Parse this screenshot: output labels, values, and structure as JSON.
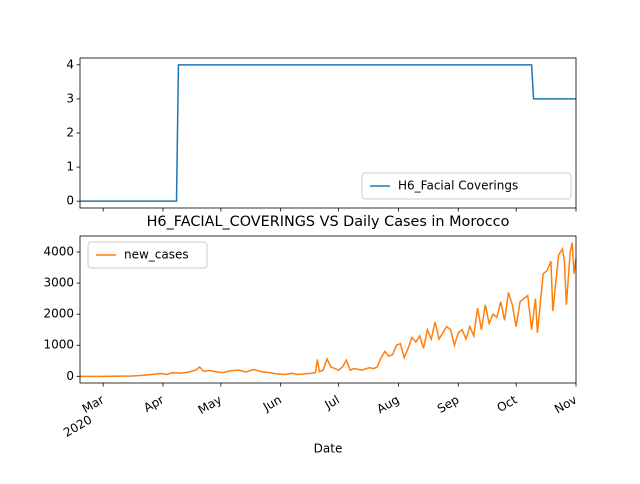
{
  "chart_data": [
    {
      "type": "line",
      "x": [
        -12,
        38,
        39,
        222,
        223,
        245
      ],
      "series": [
        {
          "name": "H6_Facial Coverings",
          "color": "#1f77b4",
          "values": [
            0,
            0,
            4,
            4,
            3,
            3
          ]
        }
      ],
      "xlim": [
        -12,
        245
      ],
      "xticks": [
        0,
        31,
        61,
        92,
        122,
        153,
        184,
        214,
        245
      ],
      "ylim": [
        -0.2,
        4.2
      ],
      "yticks": [
        0,
        1,
        2,
        3,
        4
      ],
      "legend": "lower right"
    },
    {
      "type": "line",
      "title": "H6_FACIAL_COVERINGS VS Daily Cases in Morocco",
      "x_label": "Date",
      "x_year_label": "2020",
      "x": [
        -12,
        -5,
        0,
        5,
        10,
        15,
        20,
        25,
        30,
        33,
        36,
        40,
        44,
        48,
        50,
        52,
        55,
        58,
        62,
        66,
        70,
        74,
        78,
        82,
        86,
        90,
        94,
        98,
        100,
        104,
        108,
        110,
        111,
        112,
        114,
        116,
        118,
        120,
        122,
        124,
        126,
        128,
        130,
        134,
        138,
        140,
        142,
        144,
        146,
        148,
        150,
        152,
        154,
        156,
        158,
        160,
        162,
        164,
        166,
        168,
        170,
        172,
        174,
        176,
        178,
        180,
        182,
        184,
        186,
        188,
        190,
        192,
        194,
        196,
        198,
        200,
        202,
        204,
        206,
        208,
        210,
        212,
        214,
        216,
        218,
        220,
        222,
        224,
        225,
        228,
        230,
        232,
        233,
        236,
        238,
        239,
        240,
        242,
        243,
        244,
        245
      ],
      "series": [
        {
          "name": "new_cases",
          "color": "#ff7f0e",
          "values": [
            0,
            0,
            0,
            1,
            5,
            10,
            30,
            60,
            90,
            60,
            120,
            100,
            130,
            200,
            300,
            160,
            190,
            150,
            120,
            180,
            200,
            140,
            220,
            150,
            120,
            80,
            60,
            100,
            60,
            80,
            100,
            120,
            540,
            150,
            200,
            560,
            300,
            250,
            200,
            300,
            520,
            200,
            250,
            200,
            280,
            250,
            300,
            600,
            800,
            650,
            700,
            1000,
            1050,
            600,
            900,
            1250,
            1100,
            1300,
            900,
            1500,
            1200,
            1750,
            1200,
            1400,
            1600,
            1500,
            1000,
            1400,
            1500,
            1200,
            1600,
            1300,
            2200,
            1500,
            2300,
            1700,
            2000,
            1900,
            2400,
            1800,
            2700,
            2300,
            1600,
            2400,
            2500,
            2600,
            1500,
            2500,
            1400,
            3300,
            3400,
            3700,
            2100,
            3900,
            4100,
            3700,
            2300,
            4000,
            4300,
            3300,
            3800
          ]
        }
      ],
      "xlim": [
        -12,
        245
      ],
      "xticks": [
        {
          "value": 0,
          "label": "Mar"
        },
        {
          "value": 31,
          "label": "Apr"
        },
        {
          "value": 61,
          "label": "May"
        },
        {
          "value": 92,
          "label": "Jun"
        },
        {
          "value": 122,
          "label": "Jul"
        },
        {
          "value": 153,
          "label": "Aug"
        },
        {
          "value": 184,
          "label": "Sep"
        },
        {
          "value": 214,
          "label": "Oct"
        },
        {
          "value": 245,
          "label": "Nov"
        }
      ],
      "ylim": [
        -215,
        4515
      ],
      "yticks": [
        0,
        1000,
        2000,
        3000,
        4000
      ],
      "legend": "upper left"
    }
  ]
}
